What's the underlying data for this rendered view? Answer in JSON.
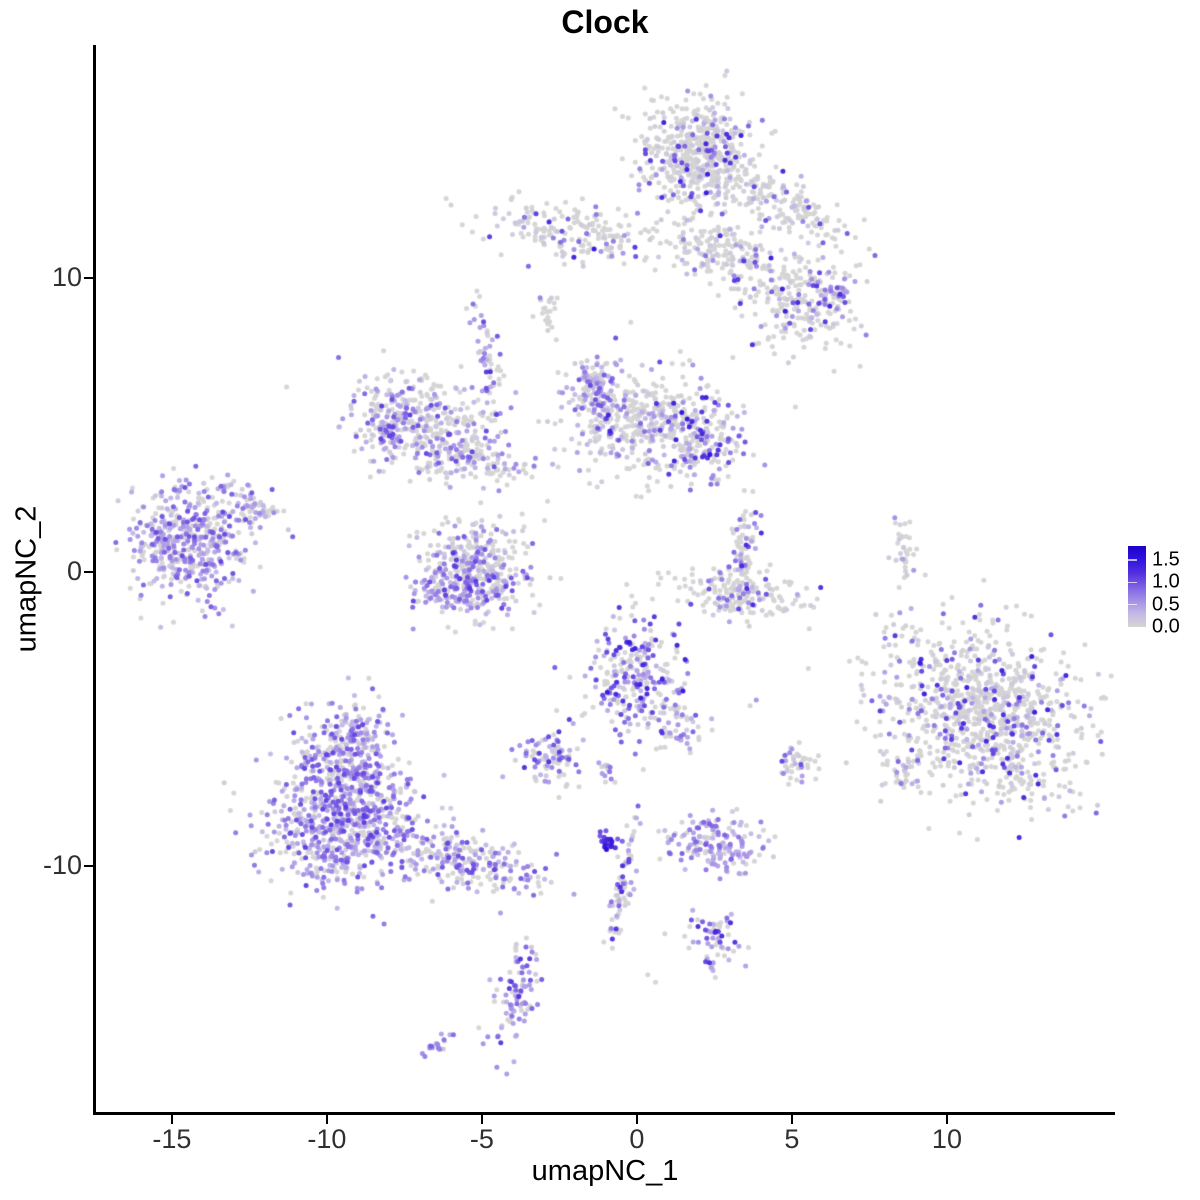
{
  "chart_data": {
    "type": "scatter",
    "title": "Clock",
    "xlabel": "umapNC_1",
    "ylabel": "umapNC_2",
    "xlim": [
      -17.48,
      15.42
    ],
    "ylim": [
      -18.4,
      17.93
    ],
    "x_ticks": [
      -15,
      -10,
      -5,
      0,
      5,
      10
    ],
    "y_ticks": [
      10,
      0,
      -10
    ],
    "grid": false,
    "point_radius_px": 2.5,
    "legend": {
      "position": "right",
      "labels": [
        "1.5",
        "1.0",
        "0.5",
        "0.0"
      ],
      "values": [
        1.5,
        1.0,
        0.5,
        0.0
      ],
      "bar_value_max": 1.82
    },
    "color_scale": {
      "low_color": "#d4d4d4",
      "high_color": "#1c02cb",
      "stops": [
        [
          0.0,
          "#d4d4d4"
        ],
        [
          0.3,
          "#c3b9e6"
        ],
        [
          0.6,
          "#a38ee6"
        ],
        [
          0.9,
          "#7e61e3"
        ],
        [
          1.2,
          "#5331e0"
        ],
        [
          1.55,
          "#2d10dd"
        ],
        [
          1.85,
          "#1c02cb"
        ]
      ]
    },
    "clusters": [
      {
        "name": "top-main",
        "n": 520,
        "cx": 1.95,
        "cy": 14.3,
        "sx": 0.85,
        "sy": 0.95,
        "rot": 0,
        "frac": 0.17,
        "vmin": 0.3,
        "vmax": 1.5
      },
      {
        "name": "top-arm-right",
        "n": 170,
        "cx": 4.6,
        "cy": 12.6,
        "sx": 1.25,
        "sy": 0.42,
        "rot": -28,
        "frac": 0.12,
        "vmin": 0.3,
        "vmax": 1.4
      },
      {
        "name": "top-arm-mid",
        "n": 160,
        "cx": 2.7,
        "cy": 10.9,
        "sx": 0.85,
        "sy": 0.5,
        "rot": -18,
        "frac": 0.13,
        "vmin": 0.3,
        "vmax": 1.4
      },
      {
        "name": "right-mid-blob",
        "n": 230,
        "cx": 5.35,
        "cy": 9.2,
        "sx": 0.9,
        "sy": 0.9,
        "rot": 0,
        "frac": 0.16,
        "vmin": 0.3,
        "vmax": 1.5
      },
      {
        "name": "right-mid-knot",
        "n": 30,
        "cx": 6.35,
        "cy": 9.5,
        "sx": 0.3,
        "sy": 0.3,
        "rot": 0,
        "frac": 0.65,
        "vmin": 0.4,
        "vmax": 1.3
      },
      {
        "name": "left-band",
        "n": 190,
        "cx": -1.7,
        "cy": 11.5,
        "sx": 1.5,
        "sy": 0.48,
        "rot": -8,
        "frac": 0.16,
        "vmin": 0.5,
        "vmax": 1.6
      },
      {
        "name": "gray-blob-small",
        "n": 22,
        "cx": -2.9,
        "cy": 8.85,
        "sx": 0.2,
        "sy": 0.38,
        "rot": 0,
        "frac": 0.05,
        "vmin": 0.3,
        "vmax": 0.8
      },
      {
        "name": "strand-left-diag",
        "n": 70,
        "cx": -4.85,
        "cy": 6.9,
        "sx": 0.26,
        "sy": 1.1,
        "rot": 14,
        "frac": 0.45,
        "vmin": 0.35,
        "vmax": 1.3
      },
      {
        "name": "crescent-main",
        "n": 300,
        "cx": -6.9,
        "cy": 5.1,
        "sx": 1.15,
        "sy": 0.8,
        "rot": -15,
        "frac": 0.3,
        "vmin": 0.3,
        "vmax": 1.1
      },
      {
        "name": "crescent-rim",
        "n": 80,
        "cx": -7.95,
        "cy": 4.95,
        "sx": 0.35,
        "sy": 0.7,
        "rot": -20,
        "frac": 0.7,
        "vmin": 0.35,
        "vmax": 1.2
      },
      {
        "name": "crescent-lower",
        "n": 130,
        "cx": -5.4,
        "cy": 3.85,
        "sx": 1.0,
        "sy": 0.45,
        "rot": -10,
        "frac": 0.3,
        "vmin": 0.3,
        "vmax": 1.1
      },
      {
        "name": "center-knob",
        "n": 130,
        "cx": -1.35,
        "cy": 6.3,
        "sx": 0.45,
        "sy": 0.5,
        "rot": 0,
        "frac": 0.55,
        "vmin": 0.3,
        "vmax": 1.1
      },
      {
        "name": "center-body",
        "n": 400,
        "cx": 0.3,
        "cy": 5.0,
        "sx": 1.3,
        "sy": 0.85,
        "rot": 0,
        "frac": 0.2,
        "vmin": 0.3,
        "vmax": 1.4
      },
      {
        "name": "center-right-patch",
        "n": 140,
        "cx": 2.1,
        "cy": 4.4,
        "sx": 0.6,
        "sy": 0.65,
        "rot": 0,
        "frac": 0.45,
        "vmin": 0.4,
        "vmax": 1.6
      },
      {
        "name": "farleft-main",
        "n": 480,
        "cx": -14.45,
        "cy": 1.05,
        "sx": 0.95,
        "sy": 0.9,
        "rot": -20,
        "frac": 0.6,
        "vmin": 0.3,
        "vmax": 1.1
      },
      {
        "name": "farleft-tail",
        "n": 60,
        "cx": -12.5,
        "cy": 2.35,
        "sx": 0.65,
        "sy": 0.28,
        "rot": -35,
        "frac": 0.55,
        "vmin": 0.3,
        "vmax": 1.0
      },
      {
        "name": "bowl",
        "n": 340,
        "cx": -5.35,
        "cy": 0.25,
        "sx": 1.0,
        "sy": 0.78,
        "rot": 0,
        "frac": 0.4,
        "vmin": 0.3,
        "vmax": 1.2
      },
      {
        "name": "bowl-rim",
        "n": 110,
        "cx": -5.5,
        "cy": -0.55,
        "sx": 0.85,
        "sy": 0.32,
        "rot": 8,
        "frac": 0.65,
        "vmin": 0.35,
        "vmax": 1.2
      },
      {
        "name": "check-strand",
        "n": 85,
        "cx": 3.45,
        "cy": 0.75,
        "sx": 0.22,
        "sy": 0.8,
        "rot": -8,
        "frac": 0.32,
        "vmin": 0.35,
        "vmax": 1.4
      },
      {
        "name": "check-bottom",
        "n": 160,
        "cx": 3.35,
        "cy": -0.8,
        "sx": 1.15,
        "sy": 0.4,
        "rot": -8,
        "frac": 0.12,
        "vmin": 0.35,
        "vmax": 1.3
      },
      {
        "name": "strand-right",
        "n": 32,
        "cx": 8.55,
        "cy": 0.65,
        "sx": 0.18,
        "sy": 0.62,
        "rot": 8,
        "frac": 0.06,
        "vmin": 0.3,
        "vmax": 0.8
      },
      {
        "name": "centerlow-main",
        "n": 270,
        "cx": -0.1,
        "cy": -3.55,
        "sx": 0.8,
        "sy": 1.0,
        "rot": 0,
        "frac": 0.5,
        "vmin": 0.35,
        "vmax": 1.5
      },
      {
        "name": "centerlow-tail",
        "n": 50,
        "cx": 1.3,
        "cy": -5.2,
        "sx": 0.42,
        "sy": 0.55,
        "rot": 30,
        "frac": 0.45,
        "vmin": 0.35,
        "vmax": 1.2
      },
      {
        "name": "right-big",
        "n": 950,
        "cx": 11.2,
        "cy": -4.7,
        "sx": 1.75,
        "sy": 1.35,
        "rot": -32,
        "frac": 0.2,
        "vmin": 0.35,
        "vmax": 1.5
      },
      {
        "name": "right-big-tail",
        "n": 40,
        "cx": 8.6,
        "cy": -6.9,
        "sx": 0.35,
        "sy": 0.4,
        "rot": 0,
        "frac": 0.25,
        "vmin": 0.3,
        "vmax": 1.0
      },
      {
        "name": "botleft-upper",
        "n": 300,
        "cx": -9.4,
        "cy": -6.1,
        "sx": 0.8,
        "sy": 0.85,
        "rot": 0,
        "frac": 0.6,
        "vmin": 0.3,
        "vmax": 1.15
      },
      {
        "name": "botleft-main",
        "n": 680,
        "cx": -9.4,
        "cy": -8.6,
        "sx": 1.25,
        "sy": 1.0,
        "rot": 5,
        "frac": 0.66,
        "vmin": 0.3,
        "vmax": 1.15
      },
      {
        "name": "botleft-tail",
        "n": 210,
        "cx": -5.5,
        "cy": -9.8,
        "sx": 1.25,
        "sy": 0.45,
        "rot": -13,
        "frac": 0.55,
        "vmin": 0.3,
        "vmax": 1.1
      },
      {
        "name": "small-purple-blob",
        "n": 85,
        "cx": -2.75,
        "cy": -6.35,
        "sx": 0.5,
        "sy": 0.52,
        "rot": 0,
        "frac": 0.55,
        "vmin": 0.35,
        "vmax": 1.3
      },
      {
        "name": "tiny-pair",
        "n": 14,
        "cx": -0.95,
        "cy": -6.85,
        "sx": 0.18,
        "sy": 0.22,
        "rot": 0,
        "frac": 0.45,
        "vmin": 0.35,
        "vmax": 1.0
      },
      {
        "name": "small-blob-right",
        "n": 40,
        "cx": 5.2,
        "cy": -6.55,
        "sx": 0.33,
        "sy": 0.4,
        "rot": 0,
        "frac": 0.3,
        "vmin": 0.35,
        "vmax": 1.2
      },
      {
        "name": "blob-light-purple",
        "n": 160,
        "cx": 2.55,
        "cy": -9.25,
        "sx": 0.8,
        "sy": 0.48,
        "rot": 0,
        "frac": 0.72,
        "vmin": 0.3,
        "vmax": 0.95
      },
      {
        "name": "dark-knot",
        "n": 22,
        "cx": -0.95,
        "cy": -9.15,
        "sx": 0.17,
        "sy": 0.2,
        "rot": 0,
        "frac": 0.95,
        "vmin": 0.9,
        "vmax": 1.75
      },
      {
        "name": "knot-strand",
        "n": 75,
        "cx": -0.5,
        "cy": -10.9,
        "sx": 0.17,
        "sy": 1.05,
        "rot": -10,
        "frac": 0.45,
        "vmin": 0.35,
        "vmax": 1.3
      },
      {
        "name": "small-cluster-bottom",
        "n": 60,
        "cx": 2.5,
        "cy": -12.55,
        "sx": 0.38,
        "sy": 0.5,
        "rot": 0,
        "frac": 0.5,
        "vmin": 0.35,
        "vmax": 1.4
      },
      {
        "name": "banana-bottom",
        "n": 95,
        "cx": -3.85,
        "cy": -14.35,
        "sx": 0.32,
        "sy": 0.95,
        "rot": -15,
        "frac": 0.75,
        "vmin": 0.35,
        "vmax": 1.2
      },
      {
        "name": "tiny-streak",
        "n": 18,
        "cx": -6.4,
        "cy": -16.05,
        "sx": 0.3,
        "sy": 0.13,
        "rot": 35,
        "frac": 0.8,
        "vmin": 0.4,
        "vmax": 1.0
      }
    ],
    "singles": [
      [
        7.2,
        7.0,
        0
      ],
      [
        -11.3,
        6.3,
        0
      ],
      [
        -3.5,
        10.4,
        0.9
      ],
      [
        1.4,
        7.5,
        0
      ],
      [
        1.7,
        7.2,
        0
      ],
      [
        0.35,
        -13.7,
        0
      ],
      [
        0.6,
        -13.95,
        0
      ],
      [
        -5.1,
        -15.5,
        0
      ],
      [
        3.85,
        -4.35,
        0.55
      ],
      [
        3.65,
        -4.55,
        0
      ],
      [
        8.8,
        1.7,
        0
      ],
      [
        5.3,
        11.4,
        0
      ],
      [
        6.0,
        10.7,
        0.4
      ],
      [
        -0.2,
        8.5,
        0
      ],
      [
        -2.6,
        7.9,
        0
      ],
      [
        9.3,
        -0.1,
        0
      ],
      [
        -13.2,
        3.3,
        0.5
      ],
      [
        4.45,
        -9.0,
        0
      ],
      [
        1.8,
        -11.5,
        0.4
      ],
      [
        0.9,
        -12.3,
        0
      ],
      [
        -6.6,
        -11.2,
        0
      ],
      [
        -4.4,
        -11.6,
        0.5
      ],
      [
        -12.2,
        -10.2,
        0.4
      ],
      [
        -11.8,
        -10.5,
        0
      ]
    ]
  }
}
